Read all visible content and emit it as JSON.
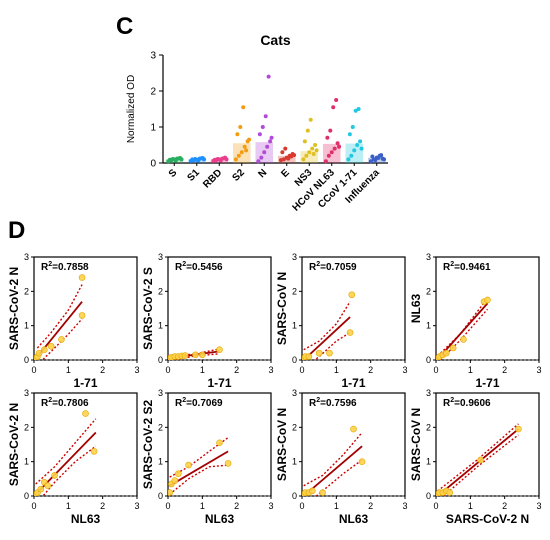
{
  "panel_labels": {
    "top": "C",
    "bottom": "D"
  },
  "chart_data": [
    {
      "type": "bar",
      "title": "Cats",
      "xlabel": "",
      "ylabel": "Normalized OD",
      "ylim": [
        0,
        3
      ],
      "yticks": [
        "0",
        "1",
        "2",
        "3"
      ],
      "categories": [
        "S",
        "S1",
        "RBD",
        "S2",
        "N",
        "E",
        "NS3",
        "HCoV NL63",
        "CCoV 1-71",
        "Influenza"
      ],
      "values": [
        0.1,
        0.1,
        0.1,
        0.55,
        0.58,
        0.2,
        0.33,
        0.53,
        0.54,
        0.15
      ],
      "colors": [
        "#27ae60",
        "#1e90ff",
        "#e83e8c",
        "#f39c12",
        "#b24bd8",
        "#d93a30",
        "#e0c020",
        "#e0306a",
        "#20c8e0",
        "#3a60c8"
      ],
      "points": [
        [
          0.05,
          0.08,
          0.1,
          0.12,
          0.14,
          0.09,
          0.11,
          0.07,
          0.13,
          0.1
        ],
        [
          0.06,
          0.08,
          0.09,
          0.12,
          0.14,
          0.1,
          0.11,
          0.07,
          0.13,
          0.1
        ],
        [
          0.06,
          0.08,
          0.1,
          0.12,
          0.15,
          0.09,
          0.11,
          0.07,
          0.13,
          0.1
        ],
        [
          0.1,
          0.2,
          0.3,
          0.45,
          0.6,
          0.8,
          1.0,
          1.55,
          0.35,
          0.65
        ],
        [
          0.05,
          0.15,
          0.3,
          0.45,
          0.6,
          0.8,
          1.0,
          1.3,
          2.4,
          0.7
        ],
        [
          0.08,
          0.1,
          0.15,
          0.2,
          0.25,
          0.3,
          0.4,
          0.12,
          0.18,
          0.22
        ],
        [
          0.1,
          0.2,
          0.3,
          0.4,
          0.5,
          0.6,
          0.9,
          1.2,
          0.25,
          0.35
        ],
        [
          0.05,
          0.2,
          0.3,
          0.4,
          0.55,
          0.7,
          0.9,
          1.55,
          1.75,
          0.45
        ],
        [
          0.1,
          0.2,
          0.35,
          0.5,
          0.6,
          0.8,
          1.0,
          1.45,
          1.5,
          0.4
        ],
        [
          0.05,
          0.1,
          0.15,
          0.2,
          0.12,
          0.18,
          0.08,
          0.14,
          0.22,
          0.1
        ]
      ]
    },
    {
      "type": "scatter",
      "xlabel": "1-71",
      "ylabel": "SARS-CoV-2 N",
      "r2": "0.7858",
      "xlim": [
        0,
        3
      ],
      "ylim": [
        0,
        3
      ],
      "xticks": [
        "0",
        "1",
        "2",
        "3"
      ],
      "yticks": [
        "0",
        "1",
        "2",
        "3"
      ],
      "x": [
        0.05,
        0.1,
        0.15,
        0.3,
        0.5,
        0.8,
        1.4,
        1.4
      ],
      "y": [
        0.05,
        0.1,
        0.2,
        0.3,
        0.4,
        0.6,
        1.3,
        2.4
      ],
      "fit": {
        "x": [
          0.1,
          1.4
        ],
        "y": [
          0.1,
          1.7
        ]
      },
      "ci_upper": {
        "x": [
          0.1,
          0.5,
          1.0,
          1.4
        ],
        "y": [
          0.35,
          0.8,
          1.45,
          2.2
        ]
      },
      "ci_lower": {
        "x": [
          0.1,
          0.5,
          1.0,
          1.4
        ],
        "y": [
          -0.15,
          0.25,
          0.75,
          1.2
        ]
      }
    },
    {
      "type": "scatter",
      "xlabel": "1-71",
      "ylabel": "SARS-CoV-2 S",
      "r2": "0.5456",
      "xlim": [
        0,
        3
      ],
      "ylim": [
        0,
        3
      ],
      "xticks": [
        "0",
        "1",
        "2",
        "3"
      ],
      "yticks": [
        "0",
        "1",
        "2",
        "3"
      ],
      "x": [
        0.05,
        0.1,
        0.2,
        0.3,
        0.4,
        0.5,
        0.8,
        1.0,
        1.5
      ],
      "y": [
        0.05,
        0.08,
        0.1,
        0.1,
        0.12,
        0.13,
        0.15,
        0.15,
        0.3
      ],
      "fit": {
        "x": [
          0.0,
          1.5
        ],
        "y": [
          0.05,
          0.25
        ]
      },
      "ci_upper": {
        "x": [
          0.0,
          0.75,
          1.5
        ],
        "y": [
          0.12,
          0.17,
          0.32
        ]
      },
      "ci_lower": {
        "x": [
          0.0,
          0.75,
          1.5
        ],
        "y": [
          -0.02,
          0.11,
          0.18
        ]
      }
    },
    {
      "type": "scatter",
      "xlabel": "1-71",
      "ylabel": "SARS-CoV N",
      "r2": "0.7059",
      "xlim": [
        0,
        3
      ],
      "ylim": [
        0,
        3
      ],
      "xticks": [
        "0",
        "1",
        "2",
        "3"
      ],
      "yticks": [
        "0",
        "1",
        "2",
        "3"
      ],
      "x": [
        0.05,
        0.1,
        0.2,
        0.5,
        0.8,
        1.4,
        1.45
      ],
      "y": [
        0.05,
        0.1,
        0.1,
        0.2,
        0.2,
        0.8,
        1.9
      ],
      "fit": {
        "x": [
          0.05,
          1.4
        ],
        "y": [
          0.0,
          1.25
        ]
      },
      "ci_upper": {
        "x": [
          0.05,
          0.5,
          1.0,
          1.4
        ],
        "y": [
          0.3,
          0.55,
          1.05,
          1.7
        ]
      },
      "ci_lower": {
        "x": [
          0.05,
          0.5,
          1.0,
          1.4
        ],
        "y": [
          -0.25,
          0.1,
          0.55,
          0.8
        ]
      }
    },
    {
      "type": "scatter",
      "xlabel": "1-71",
      "ylabel": "NL63",
      "r2": "0.9461",
      "xlim": [
        0,
        3
      ],
      "ylim": [
        0,
        3
      ],
      "xticks": [
        "0",
        "1",
        "2",
        "3"
      ],
      "yticks": [
        "0",
        "1",
        "2",
        "3"
      ],
      "x": [
        0.05,
        0.1,
        0.2,
        0.3,
        0.5,
        0.8,
        1.4,
        1.5
      ],
      "y": [
        0.05,
        0.1,
        0.15,
        0.2,
        0.35,
        0.6,
        1.7,
        1.75
      ],
      "fit": {
        "x": [
          0.05,
          1.5
        ],
        "y": [
          0.02,
          1.65
        ]
      },
      "ci_upper": {
        "x": [
          0.05,
          0.7,
          1.5
        ],
        "y": [
          0.12,
          0.75,
          1.8
        ]
      },
      "ci_lower": {
        "x": [
          0.05,
          0.7,
          1.5
        ],
        "y": [
          -0.08,
          0.57,
          1.48
        ]
      }
    },
    {
      "type": "scatter",
      "xlabel": "NL63",
      "ylabel": "SARS-CoV-2 N",
      "r2": "0.7806",
      "xlim": [
        0,
        3
      ],
      "ylim": [
        0,
        3
      ],
      "xticks": [
        "0",
        "1",
        "2",
        "3"
      ],
      "yticks": [
        "0",
        "1",
        "2",
        "3"
      ],
      "x": [
        0.05,
        0.1,
        0.2,
        0.3,
        0.4,
        0.6,
        1.5,
        1.75
      ],
      "y": [
        0.05,
        0.1,
        0.2,
        0.4,
        0.3,
        0.6,
        2.4,
        1.3
      ],
      "fit": {
        "x": [
          0.05,
          1.8
        ],
        "y": [
          0.05,
          1.85
        ]
      },
      "ci_upper": {
        "x": [
          0.05,
          0.6,
          1.2,
          1.8
        ],
        "y": [
          0.35,
          0.85,
          1.55,
          2.25
        ]
      },
      "ci_lower": {
        "x": [
          0.05,
          0.6,
          1.2,
          1.8
        ],
        "y": [
          -0.25,
          0.4,
          1.0,
          1.45
        ]
      }
    },
    {
      "type": "scatter",
      "xlabel": "NL63",
      "ylabel": "SARS-CoV-2 S2",
      "r2": "0.7069",
      "xlim": [
        0,
        3
      ],
      "ylim": [
        0,
        3
      ],
      "xticks": [
        "0",
        "1",
        "2",
        "3"
      ],
      "yticks": [
        "0",
        "1",
        "2",
        "3"
      ],
      "x": [
        0.05,
        0.1,
        0.2,
        0.3,
        0.6,
        1.5,
        1.75
      ],
      "y": [
        0.1,
        0.35,
        0.45,
        0.65,
        0.9,
        1.55,
        0.95
      ],
      "fit": {
        "x": [
          0.05,
          1.75
        ],
        "y": [
          0.3,
          1.3
        ]
      },
      "ci_upper": {
        "x": [
          0.05,
          0.6,
          1.2,
          1.75
        ],
        "y": [
          0.55,
          0.85,
          1.3,
          1.7
        ]
      },
      "ci_lower": {
        "x": [
          0.05,
          0.6,
          1.2,
          1.75
        ],
        "y": [
          0.05,
          0.5,
          0.85,
          0.9
        ]
      }
    },
    {
      "type": "scatter",
      "xlabel": "NL63",
      "ylabel": "SARS-CoV N",
      "r2": "0.7596",
      "xlim": [
        0,
        3
      ],
      "ylim": [
        0,
        3
      ],
      "xticks": [
        "0",
        "1",
        "2",
        "3"
      ],
      "yticks": [
        "0",
        "1",
        "2",
        "3"
      ],
      "x": [
        0.05,
        0.1,
        0.2,
        0.3,
        0.6,
        1.5,
        1.75
      ],
      "y": [
        0.05,
        0.1,
        0.1,
        0.15,
        0.1,
        1.95,
        1.0
      ],
      "fit": {
        "x": [
          0.05,
          1.75
        ],
        "y": [
          0.0,
          1.45
        ]
      },
      "ci_upper": {
        "x": [
          0.05,
          0.6,
          1.2,
          1.75
        ],
        "y": [
          0.3,
          0.6,
          1.2,
          1.85
        ]
      },
      "ci_lower": {
        "x": [
          0.05,
          0.6,
          1.2,
          1.75
        ],
        "y": [
          -0.3,
          0.15,
          0.65,
          1.05
        ]
      }
    },
    {
      "type": "scatter",
      "xlabel": "SARS-CoV-2 N",
      "ylabel": "SARS-CoV N",
      "r2": "0.9606",
      "xlim": [
        0,
        3
      ],
      "ylim": [
        0,
        3
      ],
      "xticks": [
        "0",
        "1",
        "2",
        "3"
      ],
      "yticks": [
        "0",
        "1",
        "2",
        "3"
      ],
      "x": [
        0.05,
        0.1,
        0.2,
        0.3,
        0.4,
        1.3,
        2.4
      ],
      "y": [
        0.05,
        0.1,
        0.1,
        0.15,
        0.1,
        1.05,
        1.95
      ],
      "fit": {
        "x": [
          0.05,
          2.4
        ],
        "y": [
          0.0,
          1.95
        ]
      },
      "ci_upper": {
        "x": [
          0.05,
          1.2,
          2.4
        ],
        "y": [
          0.15,
          1.05,
          2.1
        ]
      },
      "ci_lower": {
        "x": [
          0.05,
          1.2,
          2.4
        ],
        "y": [
          -0.15,
          0.85,
          1.78
        ]
      }
    }
  ]
}
